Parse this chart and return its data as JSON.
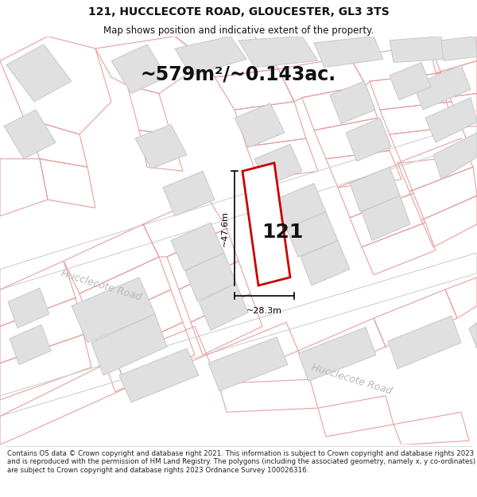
{
  "title": "121, HUCCLECOTE ROAD, GLOUCESTER, GL3 3TS",
  "subtitle": "Map shows position and indicative extent of the property.",
  "area_text": "~579m²/~0.143ac.",
  "label_121": "121",
  "dim_width": "~28.3m",
  "dim_height": "~47.6m",
  "road_label1": "Hucclecote Road",
  "road_label2": "Hucclecote Road",
  "footer": "Contains OS data © Crown copyright and database right 2021. This information is subject to Crown copyright and database rights 2023 and is reproduced with the permission of HM Land Registry. The polygons (including the associated geometry, namely x, y co-ordinates) are subject to Crown copyright and database rights 2023 Ordnance Survey 100026316.",
  "map_bg": "#ffffff",
  "parcel_edge": "#e8a0a0",
  "building_fill": "#e0e0e0",
  "building_edge": "#c8c8c8",
  "highlight_fill": "#ffffff",
  "highlight_edge": "#cc0000",
  "road_label_color": "#b8b8b8",
  "text_color": "#111111",
  "footer_color": "#222222",
  "title_fontsize": 10,
  "subtitle_fontsize": 8.5,
  "area_fontsize": 17,
  "label_fontsize": 18,
  "dim_fontsize": 8,
  "road_label_fontsize": 9,
  "footer_fontsize": 6.2
}
